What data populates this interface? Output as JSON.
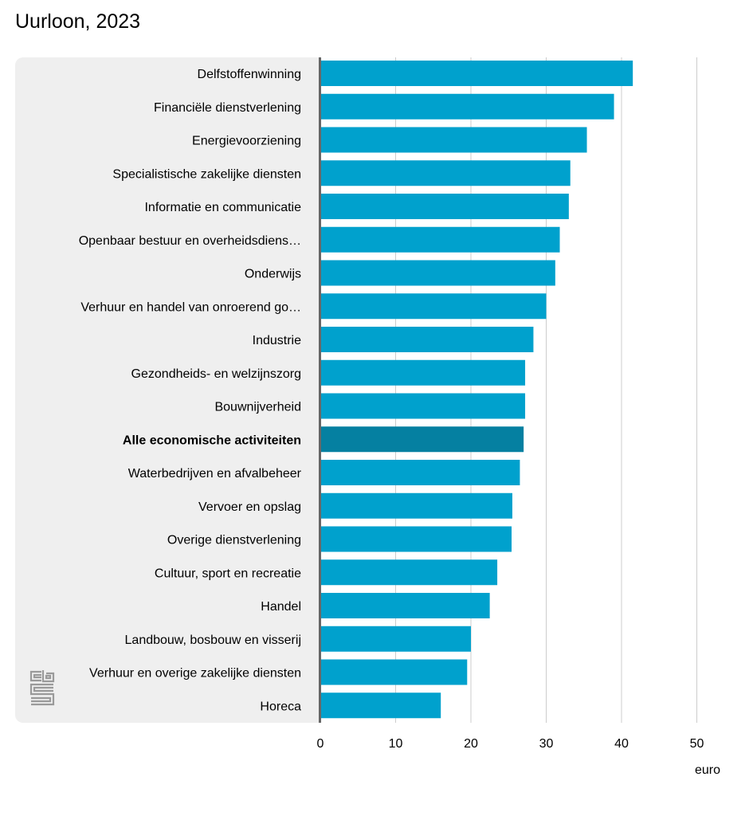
{
  "chart_data": {
    "type": "bar",
    "orientation": "horizontal",
    "title": "Uurloon, 2023",
    "categories": [
      "Delfstoffenwinning",
      "Financiële dienstverlening",
      "Energievoorziening",
      "Specialistische zakelijke diensten",
      "Informatie en communicatie",
      "Openbaar bestuur en overheidsdiens…",
      "Onderwijs",
      "Verhuur en handel van onroerend go…",
      "Industrie",
      "Gezondheids- en welzijnszorg",
      "Bouwnijverheid",
      "Alle economische activiteiten",
      "Waterbedrijven en afvalbeheer",
      "Vervoer en opslag",
      "Overige dienstverlening",
      "Cultuur, sport en recreatie",
      "Handel",
      "Landbouw, bosbouw en visserij",
      "Verhuur en overige zakelijke diensten",
      "Horeca"
    ],
    "values": [
      41.5,
      39.0,
      35.4,
      33.2,
      33.0,
      31.8,
      31.2,
      30.0,
      28.3,
      27.2,
      27.2,
      27.0,
      26.5,
      25.5,
      25.4,
      23.5,
      22.5,
      20.0,
      19.5,
      16.0
    ],
    "highlight_category": "Alle economische activiteiten",
    "xlabel": "euro",
    "ylabel": "",
    "xlim": [
      0,
      50
    ],
    "ticks": [
      "0",
      "10",
      "20",
      "30",
      "40",
      "50"
    ],
    "tick_values": [
      0,
      10,
      20,
      30,
      40,
      50
    ],
    "grid": true,
    "legend": "none",
    "colors": {
      "bar": "#00a1cd",
      "highlight_bar": "#0580a1",
      "grid": "#cccccc",
      "axis": "#666666",
      "label_panel": "#efefef"
    }
  },
  "logo": {
    "name": "cbs-logo",
    "text": "cbs",
    "color": "#999999"
  }
}
